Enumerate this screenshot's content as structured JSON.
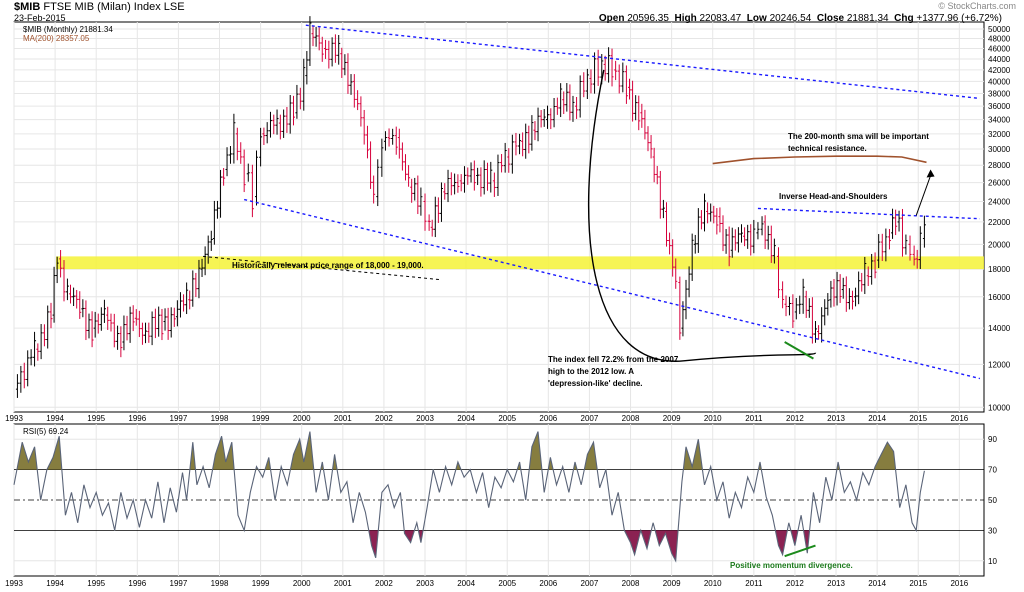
{
  "header": {
    "symbol": "$MIB",
    "name": "FTSE MIB (Milan) Index  LSE",
    "date": "23-Feb-2015",
    "brand": "© StockCharts.com",
    "open_label": "Open",
    "open": "20596.35",
    "high_label": "High",
    "high": "22083.47",
    "low_label": "Low",
    "low": "20246.54",
    "close_label": "Close",
    "close": "21881.34",
    "chg_label": "Chg",
    "chg": "+1377.96 (+6.72%)"
  },
  "chart_data": [
    {
      "type": "ohlc",
      "legend": [
        {
          "text": "$MIB (Monthly) 21881.34",
          "color": "#000000"
        },
        {
          "text": "MA(200) 28357.05",
          "color": "#a0522d"
        }
      ],
      "x_ticks": [
        "1993",
        "1994",
        "1995",
        "1996",
        "1997",
        "1998",
        "1999",
        "2000",
        "2001",
        "2002",
        "2003",
        "2004",
        "2005",
        "2006",
        "2007",
        "2008",
        "2009",
        "2010",
        "2011",
        "2012",
        "2013",
        "2014",
        "2015",
        "2016"
      ],
      "y_ticks": [
        10000,
        12000,
        14000,
        16000,
        18000,
        20000,
        22000,
        24000,
        26000,
        28000,
        30000,
        32000,
        34000,
        36000,
        38000,
        40000,
        42000,
        44000,
        46000,
        48000,
        50000
      ],
      "y_scale": "log",
      "ylim": [
        9800,
        51500
      ],
      "xlim": [
        1993.0,
        2016.5
      ],
      "up_color": "#000000",
      "down_color": "#d6003b",
      "series_close": [
        [
          1993.0,
          10800
        ],
        [
          1993.5,
          12800
        ],
        [
          1993.9,
          14800
        ],
        [
          1994.05,
          18800
        ],
        [
          1994.3,
          16200
        ],
        [
          1994.6,
          15200
        ],
        [
          1994.9,
          14000
        ],
        [
          1995.2,
          14800
        ],
        [
          1995.6,
          13200
        ],
        [
          1995.9,
          14600
        ],
        [
          1996.2,
          13800
        ],
        [
          1996.6,
          14400
        ],
        [
          1996.9,
          14700
        ],
        [
          1997.2,
          15800
        ],
        [
          1997.5,
          18000
        ],
        [
          1997.8,
          20500
        ],
        [
          1998.1,
          27500
        ],
        [
          1998.35,
          32000
        ],
        [
          1998.6,
          27000
        ],
        [
          1998.8,
          24500
        ],
        [
          1999.0,
          32000
        ],
        [
          1999.4,
          33500
        ],
        [
          1999.8,
          35000
        ],
        [
          2000.05,
          41000
        ],
        [
          2000.2,
          49000
        ],
        [
          2000.5,
          46000
        ],
        [
          2000.9,
          45000
        ],
        [
          2001.2,
          40000
        ],
        [
          2001.6,
          30000
        ],
        [
          2001.75,
          24500
        ],
        [
          2001.95,
          31000
        ],
        [
          2002.3,
          31500
        ],
        [
          2002.6,
          25500
        ],
        [
          2002.9,
          24000
        ],
        [
          2003.1,
          21500
        ],
        [
          2003.4,
          25000
        ],
        [
          2003.8,
          26200
        ],
        [
          2004.2,
          26800
        ],
        [
          2004.6,
          26200
        ],
        [
          2004.95,
          29000
        ],
        [
          2005.3,
          31000
        ],
        [
          2005.6,
          32500
        ],
        [
          2005.9,
          34000
        ],
        [
          2006.3,
          37000
        ],
        [
          2006.6,
          36000
        ],
        [
          2006.95,
          40500
        ],
        [
          2007.3,
          43000
        ],
        [
          2007.55,
          42000
        ],
        [
          2007.9,
          39000
        ],
        [
          2008.2,
          35000
        ],
        [
          2008.5,
          29000
        ],
        [
          2008.8,
          23000
        ],
        [
          2009.1,
          17000
        ],
        [
          2009.2,
          14000
        ],
        [
          2009.5,
          20000
        ],
        [
          2009.8,
          23000
        ],
        [
          2010.1,
          22500
        ],
        [
          2010.4,
          19500
        ],
        [
          2010.7,
          20700
        ],
        [
          2011.0,
          21000
        ],
        [
          2011.2,
          22000
        ],
        [
          2011.5,
          19000
        ],
        [
          2011.7,
          15500
        ],
        [
          2011.95,
          15000
        ],
        [
          2012.2,
          16000
        ],
        [
          2012.5,
          13800
        ],
        [
          2012.8,
          15800
        ],
        [
          2013.1,
          16500
        ],
        [
          2013.4,
          16000
        ],
        [
          2013.7,
          17500
        ],
        [
          2013.95,
          18700
        ],
        [
          2014.3,
          21000
        ],
        [
          2014.45,
          22000
        ],
        [
          2014.7,
          20000
        ],
        [
          2014.9,
          18800
        ],
        [
          2015.05,
          20500
        ],
        [
          2015.15,
          21881
        ]
      ],
      "ma200": [
        [
          2010.0,
          28200
        ],
        [
          2011.0,
          28800
        ],
        [
          2012.0,
          29000
        ],
        [
          2013.0,
          29100
        ],
        [
          2014.0,
          29100
        ],
        [
          2014.6,
          29000
        ],
        [
          2015.2,
          28357
        ]
      ],
      "support_band": [
        18000,
        19000
      ],
      "annotations": [
        {
          "text": "Historically relevant price range of 18,000 - 19,000."
        },
        {
          "text": "The 200-month sma will be important"
        },
        {
          "text": "technical resistance."
        },
        {
          "text": "Inverse Head-and-Shoulders"
        },
        {
          "text": "The index fell 72.2% from the 2007"
        },
        {
          "text": "high to the 2012 low. A"
        },
        {
          "text": "'depression-like' decline."
        }
      ],
      "trendlines": [
        {
          "from": [
            2000.1,
            50800
          ],
          "to": [
            2016.5,
            37200
          ],
          "style": "dotted",
          "color": "#1a1aff"
        },
        {
          "from": [
            1998.6,
            24200
          ],
          "to": [
            2016.5,
            11300
          ],
          "style": "dotted",
          "color": "#1a1aff"
        },
        {
          "from": [
            2011.1,
            23300
          ],
          "to": [
            2016.5,
            22300
          ],
          "style": "dotted",
          "color": "#1a1aff"
        }
      ]
    },
    {
      "type": "line",
      "legend": [
        {
          "text": "RSI(5) 69.24",
          "color": "#000000"
        }
      ],
      "y_ticks": [
        10,
        30,
        50,
        70,
        90
      ],
      "ylim": [
        0,
        100
      ],
      "overbought": 70,
      "oversold": 30,
      "midline": 50,
      "overbought_fill": "#867d3f",
      "oversold_fill": "#8b2252",
      "annotation": "Positive momentum divergence.",
      "x_ticks": [
        "1993",
        "1994",
        "1995",
        "1996",
        "1997",
        "1998",
        "1999",
        "2000",
        "2001",
        "2002",
        "2003",
        "2004",
        "2005",
        "2006",
        "2007",
        "2008",
        "2009",
        "2010",
        "2011",
        "2012",
        "2013",
        "2014",
        "2015",
        "2016"
      ],
      "values": [
        [
          1993.0,
          60
        ],
        [
          1993.2,
          88
        ],
        [
          1993.35,
          75
        ],
        [
          1993.5,
          85
        ],
        [
          1993.65,
          50
        ],
        [
          1993.8,
          70
        ],
        [
          1993.95,
          78
        ],
        [
          1994.1,
          92
        ],
        [
          1994.25,
          40
        ],
        [
          1994.4,
          55
        ],
        [
          1994.55,
          35
        ],
        [
          1994.7,
          60
        ],
        [
          1994.85,
          45
        ],
        [
          1995.0,
          55
        ],
        [
          1995.15,
          40
        ],
        [
          1995.3,
          48
        ],
        [
          1995.45,
          30
        ],
        [
          1995.6,
          55
        ],
        [
          1995.75,
          38
        ],
        [
          1995.9,
          50
        ],
        [
          1996.05,
          32
        ],
        [
          1996.2,
          50
        ],
        [
          1996.35,
          38
        ],
        [
          1996.5,
          62
        ],
        [
          1996.65,
          35
        ],
        [
          1996.8,
          58
        ],
        [
          1996.95,
          42
        ],
        [
          1997.1,
          68
        ],
        [
          1997.2,
          50
        ],
        [
          1997.35,
          88
        ],
        [
          1997.45,
          60
        ],
        [
          1997.6,
          72
        ],
        [
          1997.75,
          58
        ],
        [
          1997.9,
          80
        ],
        [
          1998.05,
          92
        ],
        [
          1998.15,
          75
        ],
        [
          1998.3,
          88
        ],
        [
          1998.45,
          40
        ],
        [
          1998.6,
          30
        ],
        [
          1998.75,
          55
        ],
        [
          1998.9,
          72
        ],
        [
          1999.05,
          65
        ],
        [
          1999.2,
          78
        ],
        [
          1999.35,
          50
        ],
        [
          1999.5,
          72
        ],
        [
          1999.65,
          60
        ],
        [
          1999.8,
          80
        ],
        [
          1999.95,
          90
        ],
        [
          2000.05,
          75
        ],
        [
          2000.2,
          95
        ],
        [
          2000.35,
          55
        ],
        [
          2000.5,
          75
        ],
        [
          2000.65,
          50
        ],
        [
          2000.8,
          80
        ],
        [
          2000.95,
          55
        ],
        [
          2001.1,
          62
        ],
        [
          2001.25,
          35
        ],
        [
          2001.4,
          55
        ],
        [
          2001.55,
          42
        ],
        [
          2001.7,
          20
        ],
        [
          2001.8,
          12
        ],
        [
          2001.95,
          55
        ],
        [
          2002.1,
          60
        ],
        [
          2002.25,
          45
        ],
        [
          2002.4,
          55
        ],
        [
          2002.5,
          28
        ],
        [
          2002.65,
          22
        ],
        [
          2002.8,
          35
        ],
        [
          2002.9,
          22
        ],
        [
          2003.05,
          45
        ],
        [
          2003.2,
          70
        ],
        [
          2003.35,
          55
        ],
        [
          2003.5,
          72
        ],
        [
          2003.65,
          60
        ],
        [
          2003.8,
          75
        ],
        [
          2003.95,
          65
        ],
        [
          2004.1,
          70
        ],
        [
          2004.25,
          55
        ],
        [
          2004.4,
          68
        ],
        [
          2004.55,
          45
        ],
        [
          2004.7,
          65
        ],
        [
          2004.85,
          58
        ],
        [
          2005.0,
          70
        ],
        [
          2005.15,
          62
        ],
        [
          2005.3,
          75
        ],
        [
          2005.45,
          50
        ],
        [
          2005.6,
          85
        ],
        [
          2005.75,
          95
        ],
        [
          2005.9,
          55
        ],
        [
          2006.05,
          78
        ],
        [
          2006.2,
          60
        ],
        [
          2006.35,
          72
        ],
        [
          2006.5,
          55
        ],
        [
          2006.65,
          75
        ],
        [
          2006.8,
          60
        ],
        [
          2006.95,
          80
        ],
        [
          2007.1,
          88
        ],
        [
          2007.25,
          58
        ],
        [
          2007.4,
          70
        ],
        [
          2007.55,
          40
        ],
        [
          2007.7,
          55
        ],
        [
          2007.85,
          30
        ],
        [
          2008.0,
          22
        ],
        [
          2008.1,
          14
        ],
        [
          2008.25,
          30
        ],
        [
          2008.4,
          18
        ],
        [
          2008.55,
          35
        ],
        [
          2008.7,
          20
        ],
        [
          2008.85,
          28
        ],
        [
          2009.0,
          15
        ],
        [
          2009.1,
          10
        ],
        [
          2009.25,
          62
        ],
        [
          2009.35,
          85
        ],
        [
          2009.5,
          72
        ],
        [
          2009.65,
          90
        ],
        [
          2009.8,
          60
        ],
        [
          2009.95,
          72
        ],
        [
          2010.1,
          50
        ],
        [
          2010.25,
          62
        ],
        [
          2010.4,
          38
        ],
        [
          2010.55,
          55
        ],
        [
          2010.7,
          45
        ],
        [
          2010.85,
          65
        ],
        [
          2011.0,
          55
        ],
        [
          2011.15,
          75
        ],
        [
          2011.3,
          52
        ],
        [
          2011.45,
          40
        ],
        [
          2011.6,
          20
        ],
        [
          2011.7,
          14
        ],
        [
          2011.85,
          35
        ],
        [
          2012.0,
          20
        ],
        [
          2012.15,
          40
        ],
        [
          2012.3,
          15
        ],
        [
          2012.45,
          55
        ],
        [
          2012.6,
          35
        ],
        [
          2012.75,
          65
        ],
        [
          2012.9,
          50
        ],
        [
          2013.05,
          75
        ],
        [
          2013.2,
          55
        ],
        [
          2013.35,
          62
        ],
        [
          2013.5,
          50
        ],
        [
          2013.65,
          68
        ],
        [
          2013.8,
          60
        ],
        [
          2013.95,
          72
        ],
        [
          2014.1,
          80
        ],
        [
          2014.25,
          88
        ],
        [
          2014.4,
          82
        ],
        [
          2014.55,
          45
        ],
        [
          2014.7,
          60
        ],
        [
          2014.85,
          35
        ],
        [
          2014.95,
          30
        ],
        [
          2015.05,
          55
        ],
        [
          2015.15,
          69.24
        ]
      ]
    }
  ]
}
